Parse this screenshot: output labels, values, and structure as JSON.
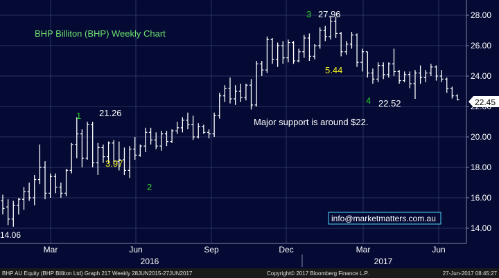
{
  "chart_data": {
    "type": "ohlc-bar",
    "title": "BHP Billiton (BHP) Weekly Chart",
    "y_axis": {
      "min": 13.0,
      "max": 29.0,
      "ticks": [
        "14.00",
        "16.00",
        "18.00",
        "20.00",
        "22.00",
        "24.00",
        "26.00",
        "28.00"
      ],
      "grid": true,
      "side": "right"
    },
    "x_axis": {
      "month_labels": [
        "Mar",
        "Jun",
        "Sep",
        "Dec",
        "Mar",
        "Jun"
      ],
      "year_labels": [
        "2016",
        "2017"
      ]
    },
    "last_price": "22.45",
    "annotations": {
      "low_label": "14.06",
      "wave1_label": "1",
      "wave1_price": "21.26",
      "wave2_label": "2",
      "wave2_move": "3.97",
      "wave3_label": "3",
      "wave3_price": "27.96",
      "wave4_label": "4",
      "wave4_price": "22.52",
      "wave4_move": "5.44",
      "support_note": "Major support is around $22.",
      "website": "info@marketmatters.com.au"
    },
    "series": [
      {
        "values": [
          [
            15.8,
            16.2,
            14.9,
            15.3
          ],
          [
            15.4,
            15.9,
            14.2,
            14.6
          ],
          [
            14.6,
            15.8,
            14.1,
            15.5
          ],
          [
            15.5,
            16.0,
            14.9,
            15.9
          ],
          [
            15.9,
            16.7,
            15.2,
            16.4
          ],
          [
            16.4,
            17.0,
            15.8,
            16.0
          ],
          [
            16.0,
            17.5,
            15.5,
            17.2
          ],
          [
            17.2,
            19.5,
            16.9,
            18.0
          ],
          [
            18.0,
            18.4,
            15.9,
            16.3
          ],
          [
            16.3,
            17.6,
            16.0,
            17.4
          ],
          [
            17.4,
            17.6,
            16.3,
            16.7
          ],
          [
            16.7,
            17.0,
            16.0,
            16.3
          ],
          [
            16.3,
            17.9,
            16.1,
            17.8
          ],
          [
            17.8,
            19.6,
            17.6,
            19.5
          ],
          [
            19.5,
            21.3,
            18.6,
            20.2
          ],
          [
            20.2,
            20.5,
            18.0,
            18.6
          ],
          [
            18.6,
            21.0,
            18.5,
            20.8
          ],
          [
            20.8,
            21.0,
            18.0,
            18.3
          ],
          [
            18.3,
            19.6,
            17.5,
            19.3
          ],
          [
            19.3,
            19.5,
            18.3,
            18.7
          ],
          [
            18.7,
            19.7,
            18.3,
            19.6
          ],
          [
            19.6,
            19.8,
            18.2,
            18.4
          ],
          [
            18.4,
            19.7,
            17.8,
            18.5
          ],
          [
            18.5,
            19.3,
            17.5,
            17.8
          ],
          [
            17.8,
            19.4,
            17.3,
            19.2
          ],
          [
            19.2,
            20.0,
            18.5,
            18.8
          ],
          [
            18.8,
            19.5,
            18.7,
            19.4
          ],
          [
            19.4,
            20.6,
            19.0,
            20.3
          ],
          [
            20.3,
            20.6,
            19.5,
            19.8
          ],
          [
            19.8,
            20.3,
            19.2,
            19.4
          ],
          [
            19.4,
            20.4,
            19.1,
            20.2
          ],
          [
            20.2,
            20.4,
            19.4,
            19.7
          ],
          [
            19.7,
            20.5,
            19.6,
            20.4
          ],
          [
            20.4,
            21.0,
            20.2,
            20.6
          ],
          [
            20.6,
            21.3,
            20.3,
            21.1
          ],
          [
            21.1,
            21.6,
            20.5,
            20.8
          ],
          [
            20.8,
            21.4,
            19.8,
            20.0
          ],
          [
            20.0,
            20.9,
            19.9,
            20.7
          ],
          [
            20.7,
            20.8,
            20.2,
            20.3
          ],
          [
            20.3,
            20.5,
            19.9,
            20.2
          ],
          [
            20.2,
            21.6,
            20.0,
            21.4
          ],
          [
            21.4,
            22.9,
            21.2,
            22.7
          ],
          [
            22.7,
            23.4,
            22.3,
            23.2
          ],
          [
            23.2,
            23.9,
            22.2,
            22.5
          ],
          [
            22.5,
            23.4,
            22.1,
            23.0
          ],
          [
            23.0,
            23.5,
            22.3,
            22.6
          ],
          [
            22.6,
            23.5,
            22.4,
            23.4
          ],
          [
            23.4,
            23.8,
            21.8,
            22.1
          ],
          [
            22.1,
            25.0,
            22.0,
            24.8
          ],
          [
            24.8,
            25.0,
            24.0,
            24.4
          ],
          [
            24.4,
            26.6,
            24.2,
            26.4
          ],
          [
            26.4,
            26.5,
            24.8,
            25.1
          ],
          [
            25.1,
            26.2,
            24.6,
            26.0
          ],
          [
            26.0,
            26.3,
            24.8,
            25.2
          ],
          [
            25.2,
            26.4,
            24.9,
            26.2
          ],
          [
            26.2,
            26.3,
            24.8,
            25.0
          ],
          [
            25.0,
            25.8,
            24.9,
            25.6
          ],
          [
            25.6,
            26.7,
            25.2,
            26.5
          ],
          [
            26.5,
            26.8,
            25.0,
            25.3
          ],
          [
            25.3,
            26.1,
            25.1,
            26.0
          ],
          [
            26.0,
            27.2,
            25.8,
            27.0
          ],
          [
            27.0,
            27.3,
            26.3,
            26.6
          ],
          [
            26.6,
            27.96,
            26.4,
            27.6
          ],
          [
            27.6,
            27.9,
            26.5,
            26.8
          ],
          [
            26.8,
            26.9,
            25.3,
            25.6
          ],
          [
            25.6,
            26.3,
            25.4,
            26.1
          ],
          [
            26.1,
            26.9,
            25.8,
            26.7
          ],
          [
            26.7,
            26.8,
            24.6,
            24.9
          ],
          [
            24.9,
            25.8,
            24.3,
            25.6
          ],
          [
            25.6,
            25.6,
            23.9,
            24.2
          ],
          [
            24.2,
            24.5,
            23.5,
            23.8
          ],
          [
            23.8,
            24.9,
            23.6,
            24.7
          ],
          [
            24.7,
            24.9,
            23.8,
            24.1
          ],
          [
            24.1,
            24.9,
            23.9,
            24.8
          ],
          [
            24.8,
            25.8,
            24.0,
            24.3
          ],
          [
            24.3,
            24.4,
            23.5,
            23.7
          ],
          [
            23.7,
            24.3,
            23.6,
            24.1
          ],
          [
            24.1,
            24.3,
            23.2,
            23.5
          ],
          [
            23.5,
            24.4,
            22.5,
            24.2
          ],
          [
            24.2,
            24.7,
            23.5,
            23.9
          ],
          [
            23.9,
            24.4,
            23.6,
            24.2
          ],
          [
            24.2,
            24.8,
            24.0,
            24.6
          ],
          [
            24.6,
            24.7,
            23.7,
            24.0
          ],
          [
            24.0,
            24.4,
            23.6,
            23.8
          ],
          [
            23.8,
            23.9,
            22.9,
            23.2
          ],
          [
            23.2,
            23.3,
            22.52,
            22.7
          ],
          [
            22.7,
            22.8,
            22.4,
            22.45
          ]
        ]
      }
    ],
    "colors": {
      "background": "#040a33",
      "plot_background": "#040a33",
      "grid": "#2c3360",
      "bars": "#ffffff",
      "title": "#6ee06e",
      "wave_number": "#2fd02f",
      "move_label": "#f2f020",
      "text": "#ffffff",
      "price_box": "#ffffff",
      "price_text": "#000000",
      "footer_bg": "#1a1a1a",
      "footer_text": "#e0e0e0"
    },
    "footer": {
      "left": "BHP AU Equity (BHP Billiton Ltd) Graph 217  Weekly 28JUN2015-27JUN2017",
      "center": "Copyright© 2017 Bloomberg Finance L.P.",
      "right": "27-Jun-2017 08:45:27"
    }
  }
}
